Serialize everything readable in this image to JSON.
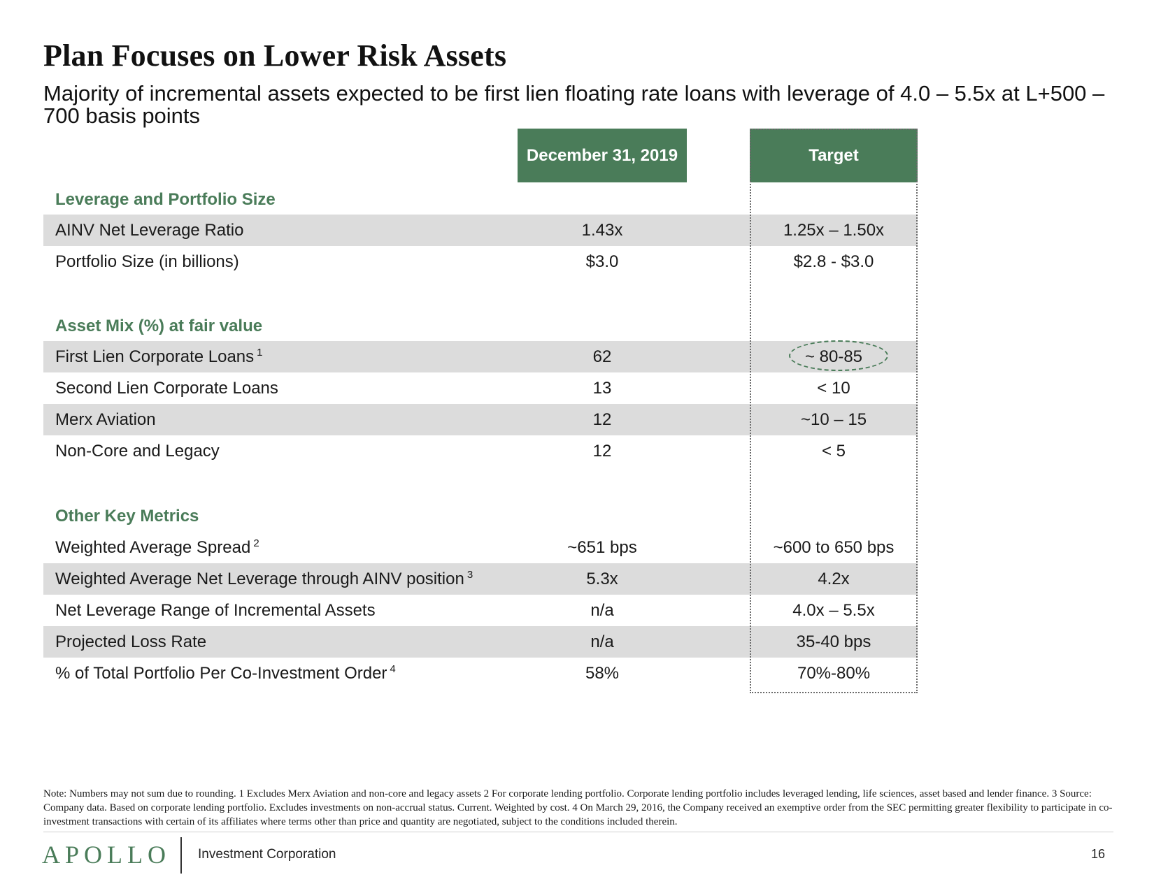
{
  "title": "Plan Focuses on Lower Risk Assets",
  "subtitle": "Majority of incremental assets expected to be first lien floating rate loans with leverage of 4.0 – 5.5x at L+500 – 700 basis points",
  "columns": {
    "col1": "December 31, 2019",
    "col2": "Target"
  },
  "sections": {
    "leverage": "Leverage and Portfolio Size",
    "asset_mix": "Asset Mix (%) at fair value",
    "other": "Other Key Metrics"
  },
  "rows": [
    {
      "label": "AINV Net Leverage Ratio",
      "sup": "",
      "v1": "1.43x",
      "v2": "1.25x – 1.50x"
    },
    {
      "label": "Portfolio Size (in billions)",
      "sup": "",
      "v1": "$3.0",
      "v2": "$2.8 - $3.0"
    },
    {
      "label": "First Lien Corporate Loans",
      "sup": "1",
      "v1": "62",
      "v2": "~ 80-85"
    },
    {
      "label": "Second Lien Corporate Loans",
      "sup": "",
      "v1": "13",
      "v2": "< 10"
    },
    {
      "label": "Merx Aviation",
      "sup": "",
      "v1": "12",
      "v2": "~10 – 15"
    },
    {
      "label": "Non-Core and Legacy",
      "sup": "",
      "v1": "12",
      "v2": "< 5"
    },
    {
      "label": "Weighted Average Spread",
      "sup": "2",
      "v1": "~651 bps",
      "v2": "~600 to 650  bps"
    },
    {
      "label": "Weighted Average Net Leverage through AINV position",
      "sup": "3",
      "v1": "5.3x",
      "v2": "4.2x"
    },
    {
      "label": "Net Leverage Range of Incremental Assets",
      "sup": "",
      "v1": "n/a",
      "v2": "4.0x – 5.5x"
    },
    {
      "label": "Projected Loss Rate",
      "sup": "",
      "v1": "n/a",
      "v2": "35-40 bps"
    },
    {
      "label": "% of Total Portfolio Per Co-Investment Order",
      "sup": "4",
      "v1": "58%",
      "v2": "70%-80%"
    }
  ],
  "note": "Note:  Numbers may not sum due to rounding. 1  Excludes Merx Aviation and non-core and legacy assets  2  For corporate lending portfolio. Corporate lending portfolio includes leveraged lending, life sciences, asset based and lender finance. 3 Source: Company data. Based on corporate lending portfolio.  Excludes investments on non-accrual status.  Current.  Weighted by cost.  4  On March 29, 2016, the Company received an exemptive order from the SEC permitting greater flexibility to participate in co-investment transactions with certain of its affiliates where terms other than price and quantity are negotiated, subject to the conditions included therein.",
  "footer": {
    "logo": "APOLLO",
    "company": "Investment Corporation",
    "page": "16"
  },
  "colors": {
    "accent": "#4a7c59",
    "shade": "#dcdcdc"
  }
}
